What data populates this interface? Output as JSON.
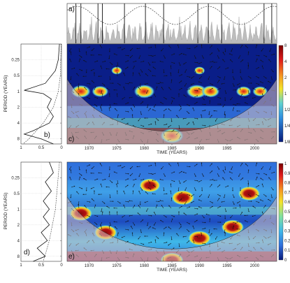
{
  "chart_data": [
    {
      "id": "a",
      "type": "line",
      "panel_label": "a)",
      "description_series": [
        {
          "kind": "area",
          "fill": "#bdbdbd"
        },
        {
          "kind": "line",
          "style": "dashed"
        }
      ],
      "vertical_markers_year": [
        1967.6,
        1968.5,
        1971.6,
        1972.4,
        1976.4,
        1980.2,
        1983.5,
        1989.7,
        1991.6,
        1994.0,
        2001.7,
        2003.1
      ],
      "grid": false
    },
    {
      "id": "b",
      "type": "line",
      "panel_label": "b)",
      "xlabel": "",
      "ylabel": "PERIOD (YEARS)",
      "x_ticks": [
        "1",
        "0.5",
        "0"
      ],
      "y_ticks": [
        "0.25",
        "0.5",
        "1",
        "2",
        "4",
        "8"
      ],
      "y_scale": "log2",
      "series": [
        {
          "style": "solid",
          "points": [
            [
              0.05,
              0.125
            ],
            [
              0.08,
              0.25
            ],
            [
              0.15,
              0.4
            ],
            [
              0.4,
              0.7
            ],
            [
              0.92,
              0.95
            ],
            [
              0.45,
              1.1
            ],
            [
              0.25,
              1.4
            ],
            [
              0.35,
              2
            ],
            [
              0.2,
              3
            ],
            [
              0.3,
              4
            ],
            [
              0.7,
              5.6
            ],
            [
              0.92,
              6.5
            ],
            [
              0.5,
              8
            ],
            [
              0.2,
              10
            ]
          ]
        },
        {
          "style": "dashed",
          "points": [
            [
              0.01,
              0.125
            ],
            [
              0.03,
              0.5
            ],
            [
              0.08,
              1
            ],
            [
              0.2,
              2
            ],
            [
              0.45,
              4
            ],
            [
              0.8,
              8
            ],
            [
              0.95,
              10
            ]
          ]
        }
      ],
      "grid": true
    },
    {
      "id": "c",
      "type": "heatmap",
      "panel_label": "c)",
      "xlabel": "TIME (YEARS)",
      "x_ticks": [
        "1970",
        "1975",
        "1980",
        "1985",
        "1990",
        "1995",
        "2000"
      ],
      "xlim": [
        1966,
        2004
      ],
      "colorbar_ticks": [
        "8",
        "4",
        "2",
        "1",
        "1/2",
        "1/4",
        "1/8"
      ],
      "hotspots": [
        {
          "year": 1968.5,
          "period": 1,
          "power": 4.5
        },
        {
          "year": 1972,
          "period": 1,
          "power": 3.5
        },
        {
          "year": 1980,
          "period": 1,
          "power": 5
        },
        {
          "year": 1989.5,
          "period": 1,
          "power": 5
        },
        {
          "year": 1992,
          "period": 1,
          "power": 4
        },
        {
          "year": 1998,
          "period": 1,
          "power": 3
        },
        {
          "year": 2001,
          "period": 1,
          "power": 3
        },
        {
          "year": 1985,
          "period": 7,
          "power": 6
        },
        {
          "year": 1975,
          "period": 0.4,
          "power": 1.5
        },
        {
          "year": 1990,
          "period": 0.4,
          "power": 1.5
        }
      ]
    },
    {
      "id": "d",
      "type": "line",
      "panel_label": "d)",
      "ylabel": "PERIOD (YEARS)",
      "x_ticks": [
        "1",
        "0.5",
        "0"
      ],
      "y_ticks": [
        "0.25",
        "0.5",
        "1",
        "2",
        "4",
        "8"
      ],
      "y_scale": "log2",
      "series": [
        {
          "style": "solid",
          "points": [
            [
              0.3,
              0.125
            ],
            [
              0.2,
              0.2
            ],
            [
              0.4,
              0.3
            ],
            [
              0.25,
              0.45
            ],
            [
              0.45,
              0.7
            ],
            [
              0.3,
              1
            ],
            [
              0.45,
              1.4
            ],
            [
              0.3,
              2
            ],
            [
              0.5,
              2.8
            ],
            [
              0.35,
              4
            ],
            [
              0.6,
              5.6
            ],
            [
              0.4,
              8
            ],
            [
              0.7,
              10
            ]
          ]
        },
        {
          "style": "dashed",
          "points": [
            [
              0.05,
              0.125
            ],
            [
              0.15,
              1
            ],
            [
              0.3,
              4
            ],
            [
              0.45,
              10
            ]
          ]
        }
      ],
      "grid": true
    },
    {
      "id": "e",
      "type": "heatmap",
      "panel_label": "e)",
      "xlabel": "TIME (YEARS)",
      "x_ticks": [
        "1970",
        "1975",
        "1980",
        "1985",
        "1990",
        "1995",
        "2000"
      ],
      "xlim": [
        1966,
        2004
      ],
      "colorbar_ticks": [
        "1",
        "0.9",
        "0.8",
        "0.7",
        "0.6",
        "0.5",
        "0.4",
        "0.3",
        "0.2",
        "0.1",
        "0"
      ],
      "hotspots": [
        {
          "year": 1968.5,
          "period": 1.2,
          "coherence": 0.95
        },
        {
          "year": 1973,
          "period": 2.8,
          "coherence": 0.95
        },
        {
          "year": 1987,
          "period": 0.6,
          "coherence": 0.95
        },
        {
          "year": 1990,
          "period": 3.6,
          "coherence": 0.95
        },
        {
          "year": 1996,
          "period": 2.2,
          "coherence": 0.92
        },
        {
          "year": 1999,
          "period": 0.5,
          "coherence": 0.9
        },
        {
          "year": 1981,
          "period": 0.35,
          "coherence": 0.85
        },
        {
          "year": 1985,
          "period": 9.5,
          "coherence": 0.95
        }
      ]
    }
  ],
  "colors": {
    "dark_blue": "#0a1e88",
    "mid_blue": "#2f6fdc",
    "cyan": "#3fb8e8",
    "yellow": "#f2dd2a",
    "orange": "#f08a22",
    "red": "#cc1616",
    "dark_red": "#7e0c0c",
    "cone_overlay": "#d7c2c2"
  }
}
